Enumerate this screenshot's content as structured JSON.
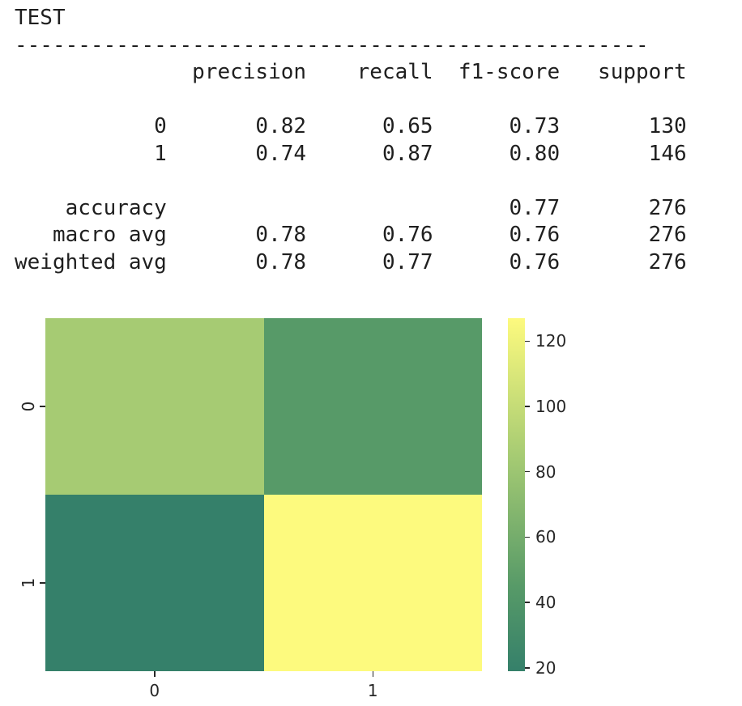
{
  "report": {
    "title": "TEST",
    "divider": "--------------------------------------------------",
    "header": [
      "precision",
      "recall",
      "f1-score",
      "support"
    ],
    "rows": [
      {
        "label": "0",
        "precision": "0.82",
        "recall": "0.65",
        "f1": "0.73",
        "support": "130"
      },
      {
        "label": "1",
        "precision": "0.74",
        "recall": "0.87",
        "f1": "0.80",
        "support": "146"
      }
    ],
    "summary": [
      {
        "label": "accuracy",
        "precision": "",
        "recall": "",
        "f1": "0.77",
        "support": "276"
      },
      {
        "label": "macro avg",
        "precision": "0.78",
        "recall": "0.76",
        "f1": "0.76",
        "support": "276"
      },
      {
        "label": "weighted avg",
        "precision": "0.78",
        "recall": "0.77",
        "f1": "0.76",
        "support": "276"
      }
    ]
  },
  "chart_data": {
    "type": "heatmap",
    "title": "",
    "x_labels": [
      "0",
      "1"
    ],
    "y_labels": [
      "0",
      "1"
    ],
    "matrix": [
      [
        85,
        45
      ],
      [
        19,
        127
      ]
    ],
    "vmin": 19,
    "vmax": 127,
    "colorbar_ticks": [
      120,
      100,
      80,
      60,
      40,
      20
    ],
    "cell_colors": [
      [
        "#a6cb73",
        "#579a68"
      ],
      [
        "#35806a",
        "#fdfa7e"
      ]
    ],
    "colormap_stops": [
      {
        "pos": 0.0,
        "color": "#35806a"
      },
      {
        "pos": 0.24,
        "color": "#579a68"
      },
      {
        "pos": 0.61,
        "color": "#a6cb73"
      },
      {
        "pos": 1.0,
        "color": "#fdfa7e"
      }
    ],
    "tick_color": "#262626",
    "legend_position": "right-colorbar",
    "grid": false
  }
}
